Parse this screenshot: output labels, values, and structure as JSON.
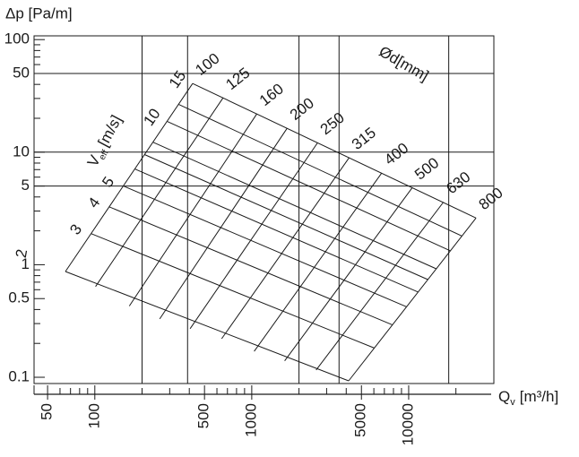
{
  "chart_data": {
    "type": "nomogram",
    "y_label": "Δp [Pa/m]",
    "x_label": "Q",
    "x_label_sub": "v",
    "x_label_unit": "[m³/h]",
    "log_x": true,
    "log_y": true,
    "xlim": [
      41,
      34900
    ],
    "ylim": [
      0.088,
      108
    ],
    "xticks": [
      50,
      100,
      500,
      1000,
      5000,
      10000
    ],
    "xminor_ticks": [
      60,
      70,
      80,
      90,
      200,
      300,
      400,
      600,
      700,
      800,
      900,
      2000,
      3000,
      4000,
      6000,
      7000,
      8000,
      9000,
      20000
    ],
    "yticks": [
      100,
      50,
      10,
      5,
      1,
      0.5,
      0.1
    ],
    "yminor_ticks": [
      90,
      80,
      70,
      60,
      40,
      30,
      20,
      9,
      8,
      7,
      6,
      4,
      3,
      2,
      0.9,
      0.8,
      0.7,
      0.6,
      0.4,
      0.3,
      0.2
    ],
    "xgrid": [
      200,
      390,
      2000,
      3600,
      18000
    ],
    "ygrid": [
      50,
      10,
      5
    ],
    "color": "#1a1a1a",
    "diameter_label": "Ød[mm]",
    "diameters": [
      {
        "name": "100",
        "x": [
          420,
          65
        ],
        "values": [
          40.7,
          0.87
        ]
      },
      {
        "name": "125",
        "x": [
          656,
          101
        ],
        "values": [
          30.3,
          0.64
        ]
      },
      {
        "name": "160",
        "x": [
          1075,
          166
        ],
        "values": [
          21.8,
          0.43
        ]
      },
      {
        "name": "200",
        "x": [
          1680,
          259
        ],
        "values": [
          16.3,
          0.33
        ]
      },
      {
        "name": "250",
        "x": [
          2625,
          405
        ],
        "values": [
          12.1,
          0.27
        ]
      },
      {
        "name": "315",
        "x": [
          4167,
          643
        ],
        "values": [
          8.9,
          0.22
        ]
      },
      {
        "name": "400",
        "x": [
          6720,
          1037
        ],
        "values": [
          6.5,
          0.17
        ]
      },
      {
        "name": "500",
        "x": [
          10500,
          1620
        ],
        "values": [
          4.8,
          0.14
        ]
      },
      {
        "name": "630",
        "x": [
          16670,
          2572
        ],
        "values": [
          3.6,
          0.116
        ]
      },
      {
        "name": "800",
        "x": [
          26880,
          4147
        ],
        "values": [
          2.6,
          0.093
        ]
      }
    ],
    "velocity_label": "V",
    "velocity_label_sub": "eff",
    "velocity_label_unit": "[m/s]",
    "velocities": [
      {
        "name": "2",
        "x": [
          65,
          4147
        ],
        "values": [
          0.87,
          0.093
        ]
      },
      {
        "name": "3",
        "x": [
          94.6,
          6040
        ],
        "values": [
          1.89,
          0.182
        ]
      },
      {
        "name": "4",
        "x": [
          123.5,
          7888
        ],
        "values": [
          3.27,
          0.292
        ]
      },
      {
        "name": "5",
        "x": [
          151.9,
          9704
        ],
        "values": [
          5.0,
          0.423
        ]
      },
      {
        "name": null,
        "x": [
          179.8,
          11490
        ],
        "values": [
          7.08,
          0.572
        ]
      },
      {
        "name": null,
        "x": [
          207.4,
          13260
        ],
        "values": [
          9.51,
          0.738
        ]
      },
      {
        "name": null,
        "x": [
          234.7,
          15000
        ],
        "values": [
          12.26,
          0.92
        ]
      },
      {
        "name": "10",
        "x": [
          288.5,
          18450
        ],
        "values": [
          18.8,
          1.33
        ]
      },
      {
        "name": null,
        "x": [
          341.6,
          21850
        ],
        "values": [
          26.6,
          1.8
        ]
      },
      {
        "name": "15",
        "x": [
          420,
          26880
        ],
        "values": [
          40.7,
          2.6
        ]
      }
    ]
  }
}
